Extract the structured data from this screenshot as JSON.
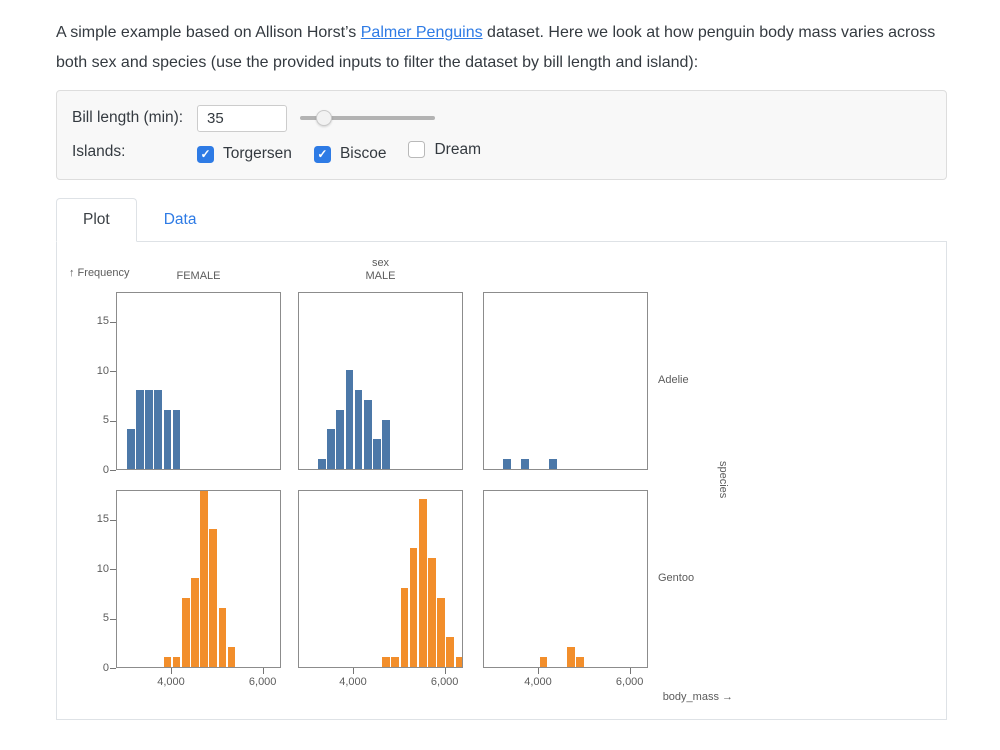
{
  "accent": "#2e7be5",
  "intro": {
    "text_before_link": "A simple example based on Allison Horst’s ",
    "link_text": "Palmer Penguins",
    "text_after_link": " dataset. Here we look at how penguin body mass varies across both sex and species (use the provided inputs to filter the dataset by bill length and island):"
  },
  "filters": {
    "bill_length_label": "Bill length (min):",
    "bill_length_value": "35",
    "slider_percent": 18,
    "islands_label": "Islands:",
    "islands": [
      {
        "label": "Torgersen",
        "checked": true
      },
      {
        "label": "Biscoe",
        "checked": true
      },
      {
        "label": "Dream",
        "checked": false
      }
    ]
  },
  "tabs": [
    {
      "label": "Plot",
      "active": true
    },
    {
      "label": "Data",
      "active": false
    }
  ],
  "chart_data": {
    "type": "bar",
    "subtype": "faceted-histogram",
    "x_axis_label": "body_mass →",
    "y_axis_label": "↑ Frequency",
    "facet_col_label": "sex",
    "facet_row_label": "species",
    "col_facets": [
      "FEMALE",
      "MALE",
      ""
    ],
    "row_facets": [
      "Adelie",
      "Gentoo"
    ],
    "x_domain": [
      2800,
      6400
    ],
    "y_domain": [
      0,
      18
    ],
    "x_ticks": [
      4000,
      6000
    ],
    "y_ticks": [
      0,
      5,
      10,
      15
    ],
    "bin_width": 200,
    "grid": false,
    "colors": {
      "Adelie": "#4c78a8",
      "Gentoo": "#f28e2b"
    },
    "facets": [
      {
        "species": "Adelie",
        "sex": "FEMALE",
        "bins": [
          [
            3000,
            4
          ],
          [
            3200,
            8
          ],
          [
            3400,
            8
          ],
          [
            3600,
            8
          ],
          [
            3800,
            6
          ],
          [
            4000,
            6
          ]
        ]
      },
      {
        "species": "Adelie",
        "sex": "MALE",
        "bins": [
          [
            3200,
            1
          ],
          [
            3400,
            4
          ],
          [
            3600,
            6
          ],
          [
            3800,
            10
          ],
          [
            4000,
            8
          ],
          [
            4200,
            7
          ],
          [
            4400,
            3
          ],
          [
            4600,
            5
          ]
        ]
      },
      {
        "species": "Adelie",
        "sex": "",
        "bins": [
          [
            3200,
            1
          ],
          [
            3600,
            1
          ],
          [
            4200,
            1
          ]
        ]
      },
      {
        "species": "Gentoo",
        "sex": "FEMALE",
        "bins": [
          [
            3800,
            1
          ],
          [
            4000,
            1
          ],
          [
            4200,
            7
          ],
          [
            4400,
            9
          ],
          [
            4600,
            18
          ],
          [
            4800,
            14
          ],
          [
            5000,
            6
          ],
          [
            5200,
            2
          ]
        ]
      },
      {
        "species": "Gentoo",
        "sex": "MALE",
        "bins": [
          [
            4600,
            1
          ],
          [
            4800,
            1
          ],
          [
            5000,
            8
          ],
          [
            5200,
            12
          ],
          [
            5400,
            17
          ],
          [
            5600,
            11
          ],
          [
            5800,
            7
          ],
          [
            6000,
            3
          ],
          [
            6200,
            1
          ]
        ]
      },
      {
        "species": "Gentoo",
        "sex": "",
        "bins": [
          [
            4000,
            1
          ],
          [
            4600,
            2
          ],
          [
            4800,
            1
          ]
        ]
      }
    ]
  }
}
